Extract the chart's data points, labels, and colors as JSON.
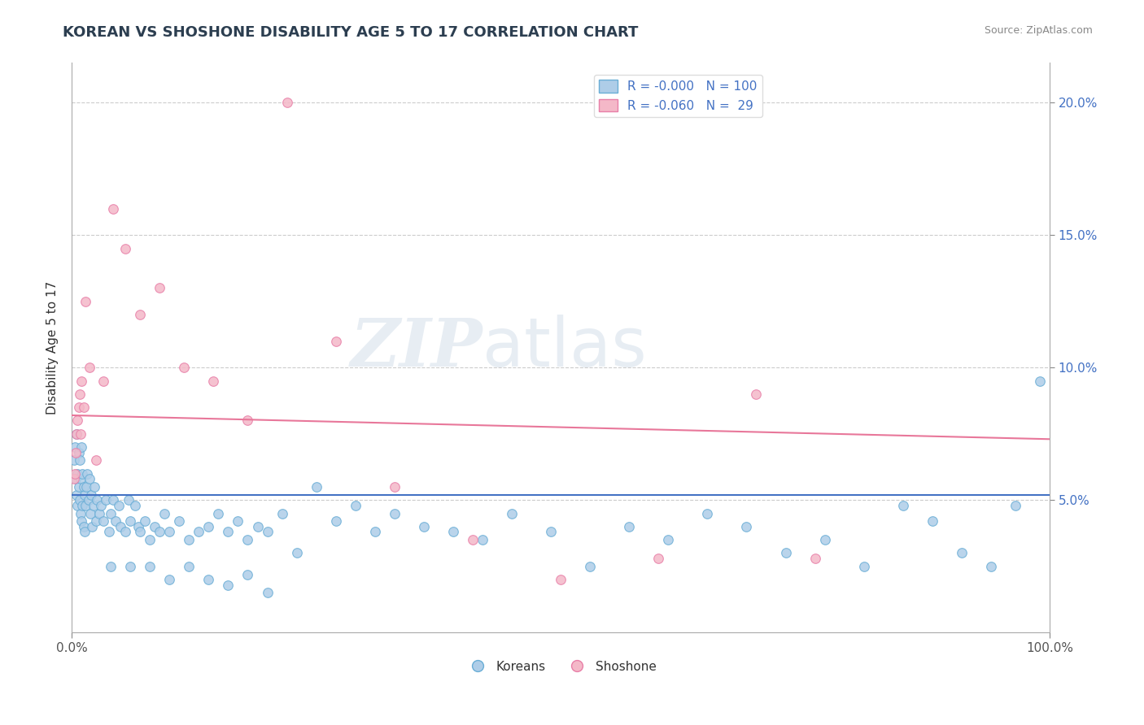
{
  "title": "KOREAN VS SHOSHONE DISABILITY AGE 5 TO 17 CORRELATION CHART",
  "source": "Source: ZipAtlas.com",
  "ylabel": "Disability Age 5 to 17",
  "xlim": [
    0.0,
    1.0
  ],
  "ylim": [
    0.0,
    0.215
  ],
  "yticks": [
    0.05,
    0.1,
    0.15,
    0.2
  ],
  "yticklabels": [
    "5.0%",
    "10.0%",
    "15.0%",
    "20.0%"
  ],
  "korean_R": -0.0,
  "korean_N": 100,
  "shoshone_R": -0.06,
  "shoshone_N": 29,
  "korean_color": "#aecde8",
  "shoshone_color": "#f4b8c8",
  "korean_edge": "#6aaed6",
  "shoshone_edge": "#e87fa8",
  "trendline_korean_color": "#4472c4",
  "trendline_shoshone_color": "#e8779a",
  "watermark": "ZIPatlas",
  "legend_korean_label": "Koreans",
  "legend_shoshone_label": "Shoshone",
  "trendline_korean_y0": 0.052,
  "trendline_korean_y1": 0.052,
  "trendline_shoshone_y0": 0.082,
  "trendline_shoshone_y1": 0.073,
  "koreans_x": [
    0.002,
    0.003,
    0.004,
    0.005,
    0.005,
    0.006,
    0.006,
    0.007,
    0.007,
    0.008,
    0.008,
    0.009,
    0.009,
    0.01,
    0.01,
    0.011,
    0.011,
    0.012,
    0.012,
    0.013,
    0.013,
    0.014,
    0.015,
    0.016,
    0.017,
    0.018,
    0.019,
    0.02,
    0.021,
    0.022,
    0.023,
    0.025,
    0.026,
    0.028,
    0.03,
    0.032,
    0.035,
    0.038,
    0.04,
    0.042,
    0.045,
    0.048,
    0.05,
    0.055,
    0.058,
    0.06,
    0.065,
    0.068,
    0.07,
    0.075,
    0.08,
    0.085,
    0.09,
    0.095,
    0.1,
    0.11,
    0.12,
    0.13,
    0.14,
    0.15,
    0.16,
    0.17,
    0.18,
    0.19,
    0.2,
    0.215,
    0.23,
    0.25,
    0.27,
    0.29,
    0.31,
    0.33,
    0.36,
    0.39,
    0.42,
    0.45,
    0.49,
    0.53,
    0.57,
    0.61,
    0.65,
    0.69,
    0.73,
    0.77,
    0.81,
    0.85,
    0.88,
    0.91,
    0.94,
    0.965,
    0.04,
    0.06,
    0.08,
    0.1,
    0.12,
    0.14,
    0.16,
    0.18,
    0.2,
    0.99
  ],
  "koreans_y": [
    0.065,
    0.07,
    0.058,
    0.075,
    0.052,
    0.06,
    0.048,
    0.068,
    0.055,
    0.065,
    0.05,
    0.058,
    0.045,
    0.07,
    0.042,
    0.06,
    0.048,
    0.055,
    0.04,
    0.052,
    0.038,
    0.048,
    0.055,
    0.06,
    0.05,
    0.058,
    0.045,
    0.052,
    0.04,
    0.048,
    0.055,
    0.042,
    0.05,
    0.045,
    0.048,
    0.042,
    0.05,
    0.038,
    0.045,
    0.05,
    0.042,
    0.048,
    0.04,
    0.038,
    0.05,
    0.042,
    0.048,
    0.04,
    0.038,
    0.042,
    0.035,
    0.04,
    0.038,
    0.045,
    0.038,
    0.042,
    0.035,
    0.038,
    0.04,
    0.045,
    0.038,
    0.042,
    0.035,
    0.04,
    0.038,
    0.045,
    0.03,
    0.055,
    0.042,
    0.048,
    0.038,
    0.045,
    0.04,
    0.038,
    0.035,
    0.045,
    0.038,
    0.025,
    0.04,
    0.035,
    0.045,
    0.04,
    0.03,
    0.035,
    0.025,
    0.048,
    0.042,
    0.03,
    0.025,
    0.048,
    0.025,
    0.025,
    0.025,
    0.02,
    0.025,
    0.02,
    0.018,
    0.022,
    0.015,
    0.095
  ],
  "shoshone_x": [
    0.002,
    0.003,
    0.004,
    0.005,
    0.006,
    0.007,
    0.008,
    0.009,
    0.01,
    0.012,
    0.014,
    0.018,
    0.025,
    0.032,
    0.042,
    0.055,
    0.07,
    0.09,
    0.115,
    0.145,
    0.18,
    0.22,
    0.27,
    0.33,
    0.41,
    0.5,
    0.6,
    0.7,
    0.76
  ],
  "shoshone_y": [
    0.058,
    0.06,
    0.068,
    0.075,
    0.08,
    0.085,
    0.09,
    0.075,
    0.095,
    0.085,
    0.125,
    0.1,
    0.065,
    0.095,
    0.16,
    0.145,
    0.12,
    0.13,
    0.1,
    0.095,
    0.08,
    0.2,
    0.11,
    0.055,
    0.035,
    0.02,
    0.028,
    0.09,
    0.028
  ]
}
